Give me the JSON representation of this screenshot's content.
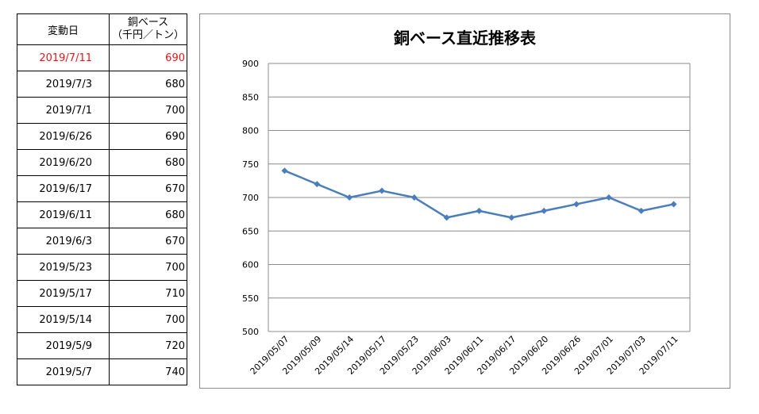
{
  "table": {
    "header_date": "変動日",
    "header_price_line1": "銅ベース",
    "header_price_line2": "（千円／トン）",
    "rows": [
      {
        "date": "2019/7/11",
        "price": "690"
      },
      {
        "date": "2019/7/3",
        "price": "680"
      },
      {
        "date": "2019/7/1",
        "price": "700"
      },
      {
        "date": "2019/6/26",
        "price": "690"
      },
      {
        "date": "2019/6/20",
        "price": "680"
      },
      {
        "date": "2019/6/17",
        "price": "670"
      },
      {
        "date": "2019/6/11",
        "price": "680"
      },
      {
        "date": "2019/6/3",
        "price": "670"
      },
      {
        "date": "2019/5/23",
        "price": "700"
      },
      {
        "date": "2019/5/17",
        "price": "710"
      },
      {
        "date": "2019/5/14",
        "price": "700"
      },
      {
        "date": "2019/5/9",
        "price": "720"
      },
      {
        "date": "2019/5/7",
        "price": "740"
      }
    ],
    "latest_color": "#e8141b"
  },
  "chart_data": {
    "type": "line",
    "title": "銅ベース直近推移表",
    "categories": [
      "2019/05/07",
      "2019/05/09",
      "2019/05/14",
      "2019/05/17",
      "2019/05/23",
      "2019/06/03",
      "2019/06/11",
      "2019/06/17",
      "2019/06/20",
      "2019/06/26",
      "2019/07/01",
      "2019/07/03",
      "2019/07/11"
    ],
    "series": [
      {
        "values": [
          740,
          720,
          700,
          710,
          700,
          670,
          680,
          670,
          680,
          690,
          700,
          680,
          690
        ],
        "color": "#4a7ebb"
      }
    ],
    "ylim": [
      500,
      900
    ],
    "yticks": [
      500,
      550,
      600,
      650,
      700,
      750,
      800,
      850,
      900
    ],
    "grid": true,
    "legend": "none",
    "xlabel": "",
    "ylabel": ""
  }
}
